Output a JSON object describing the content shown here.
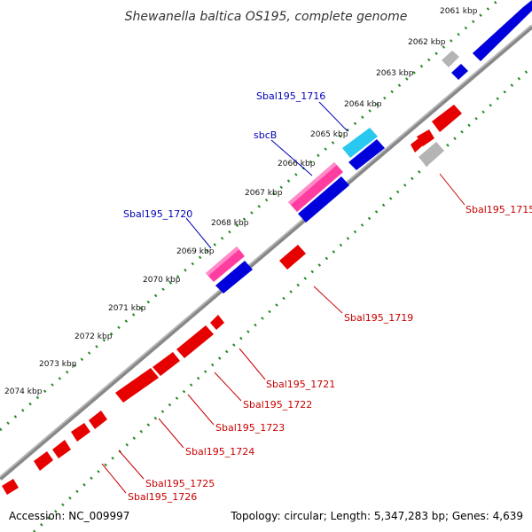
{
  "title": "Shewanella baltica OS195, complete genome",
  "footer": {
    "accession": "Accession: NC_009997",
    "summary": "Topology: circular; Length: 5,347,283 bp; Genes: 4,639"
  },
  "ticks": [
    "2061 kbp",
    "2062 kbp",
    "2063 kbp",
    "2064 kbp",
    "2065 kbp",
    "2066 kbp",
    "2067 kbp",
    "2068 kbp",
    "2069 kbp",
    "2070 kbp",
    "2071 kbp",
    "2072 kbp",
    "2073 kbp",
    "2074 kbp"
  ],
  "labels": {
    "sbal1716": "Sbal195_1716",
    "sbcb": "sbcB",
    "sbal1720": "Sbal195_1720",
    "sbal1715": "Sbal195_1715",
    "sbal1719": "Sbal195_1719",
    "sbal1721": "Sbal195_1721",
    "sbal1722": "Sbal195_1722",
    "sbal1723": "Sbal195_1723",
    "sbal1724": "Sbal195_1724",
    "sbal1725": "Sbal195_1725",
    "sbal1726": "Sbal195_1726"
  },
  "colors": {
    "forward": "#0000dc",
    "reverse": "#e60000",
    "highlight": "#ff3ca0",
    "highlight_alt": "#28c8f0",
    "pseudo": "#b4b4b4",
    "backbone": "#888888",
    "tick": "#228b22"
  }
}
